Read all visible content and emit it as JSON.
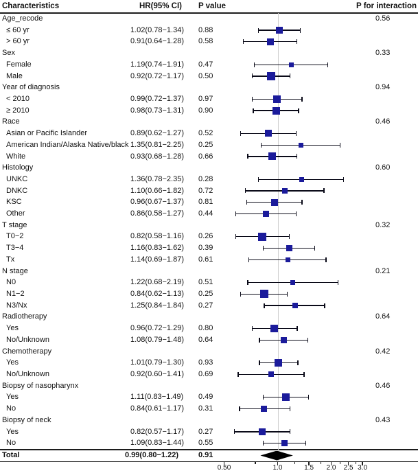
{
  "chart_data": {
    "type": "scatter",
    "subtype": "forest-plot",
    "headers": {
      "characteristics": "Characteristics",
      "hr": "HR(95% CI)",
      "pvalue": "P value",
      "pinteraction": "P for interaction"
    },
    "colors": {
      "marker": "#1b1b9b",
      "ci_line": "#0a0a18",
      "reference_line": "#cfcfcf",
      "diamond": "#000000",
      "rule": "#1c1c1c"
    },
    "axis": {
      "scale": "log10",
      "reference_value": 1.0,
      "major_ticks": [
        0.5,
        1.0,
        1.5,
        2.0,
        2.5,
        3.0
      ],
      "major_tick_labels": [
        "0.50",
        "1.0",
        "1.5",
        "2.0",
        "2.5",
        "3.0"
      ],
      "minor_ticks": [
        0.75,
        1.25,
        1.75,
        2.25,
        2.75
      ]
    },
    "rows": [
      {
        "type": "group",
        "label": "Age_recode",
        "p_interaction": "0.56"
      },
      {
        "type": "item",
        "label": "≤ 60 yr",
        "hr_ci": "1.02(0.78−1.34)",
        "hr": 1.02,
        "lo": 0.78,
        "hi": 1.34,
        "p": "0.88",
        "size": 10
      },
      {
        "type": "item",
        "label": "> 60 yr",
        "hr_ci": "0.91(0.64−1.28)",
        "hr": 0.91,
        "lo": 0.64,
        "hi": 1.28,
        "p": "0.58",
        "size": 10
      },
      {
        "type": "group",
        "label": "Sex",
        "p_interaction": "0.33"
      },
      {
        "type": "item",
        "label": "Female",
        "hr_ci": "1.19(0.74−1.91)",
        "hr": 1.19,
        "lo": 0.74,
        "hi": 1.91,
        "p": "0.47",
        "size": 7
      },
      {
        "type": "item",
        "label": "Male",
        "hr_ci": "0.92(0.72−1.17)",
        "hr": 0.92,
        "lo": 0.72,
        "hi": 1.17,
        "p": "0.50",
        "size": 12
      },
      {
        "type": "group",
        "label": "Year of diagnosis",
        "p_interaction": "0.94"
      },
      {
        "type": "item",
        "label": "< 2010",
        "hr_ci": "0.99(0.72−1.37)",
        "hr": 0.99,
        "lo": 0.72,
        "hi": 1.37,
        "p": "0.97",
        "size": 11
      },
      {
        "type": "item",
        "label": "≥ 2010",
        "hr_ci": "0.98(0.73−1.31)",
        "hr": 0.98,
        "lo": 0.73,
        "hi": 1.31,
        "p": "0.90",
        "size": 11
      },
      {
        "type": "group",
        "label": "Race",
        "p_interaction": "0.46"
      },
      {
        "type": "item",
        "label": "Asian or Pacific Islander",
        "hr_ci": "0.89(0.62−1.27)",
        "hr": 0.89,
        "lo": 0.62,
        "hi": 1.27,
        "p": "0.52",
        "size": 10
      },
      {
        "type": "item",
        "label": "American Indian/Alaska Native/black",
        "hr_ci": "1.35(0.81−2.25)",
        "hr": 1.35,
        "lo": 0.81,
        "hi": 2.25,
        "p": "0.25",
        "size": 7
      },
      {
        "type": "item",
        "label": "White",
        "hr_ci": "0.93(0.68−1.28)",
        "hr": 0.93,
        "lo": 0.68,
        "hi": 1.28,
        "p": "0.66",
        "size": 11
      },
      {
        "type": "group",
        "label": "Histology",
        "p_interaction": "0.60"
      },
      {
        "type": "item",
        "label": "UNKC",
        "hr_ci": "1.36(0.78−2.35)",
        "hr": 1.36,
        "lo": 0.78,
        "hi": 2.35,
        "p": "0.28",
        "size": 7
      },
      {
        "type": "item",
        "label": "DNKC",
        "hr_ci": "1.10(0.66−1.82)",
        "hr": 1.1,
        "lo": 0.66,
        "hi": 1.82,
        "p": "0.72",
        "size": 8
      },
      {
        "type": "item",
        "label": "KSC",
        "hr_ci": "0.96(0.67−1.37)",
        "hr": 0.96,
        "lo": 0.67,
        "hi": 1.37,
        "p": "0.81",
        "size": 10
      },
      {
        "type": "item",
        "label": "Other",
        "hr_ci": "0.86(0.58−1.27)",
        "hr": 0.86,
        "lo": 0.58,
        "hi": 1.27,
        "p": "0.44",
        "size": 9
      },
      {
        "type": "group",
        "label": "T stage",
        "p_interaction": "0.32"
      },
      {
        "type": "item",
        "label": "T0−2",
        "hr_ci": "0.82(0.58−1.16)",
        "hr": 0.82,
        "lo": 0.58,
        "hi": 1.16,
        "p": "0.26",
        "size": 12
      },
      {
        "type": "item",
        "label": "T3−4",
        "hr_ci": "1.16(0.83−1.62)",
        "hr": 1.16,
        "lo": 0.83,
        "hi": 1.62,
        "p": "0.39",
        "size": 9
      },
      {
        "type": "item",
        "label": "Tx",
        "hr_ci": "1.14(0.69−1.87)",
        "hr": 1.14,
        "lo": 0.69,
        "hi": 1.87,
        "p": "0.61",
        "size": 7
      },
      {
        "type": "group",
        "label": "N stage",
        "p_interaction": "0.21"
      },
      {
        "type": "item",
        "label": "N0",
        "hr_ci": "1.22(0.68−2.19)",
        "hr": 1.22,
        "lo": 0.68,
        "hi": 2.19,
        "p": "0.51",
        "size": 7
      },
      {
        "type": "item",
        "label": "N1−2",
        "hr_ci": "0.84(0.62−1.13)",
        "hr": 0.84,
        "lo": 0.62,
        "hi": 1.13,
        "p": "0.25",
        "size": 12
      },
      {
        "type": "item",
        "label": "N3/Nx",
        "hr_ci": "1.25(0.84−1.84)",
        "hr": 1.25,
        "lo": 0.84,
        "hi": 1.84,
        "p": "0.27",
        "size": 8
      },
      {
        "type": "group",
        "label": "Radiotherapy",
        "p_interaction": "0.64"
      },
      {
        "type": "item",
        "label": "Yes",
        "hr_ci": "0.96(0.72−1.29)",
        "hr": 0.96,
        "lo": 0.72,
        "hi": 1.29,
        "p": "0.80",
        "size": 11
      },
      {
        "type": "item",
        "label": "No/Unknown",
        "hr_ci": "1.08(0.79−1.48)",
        "hr": 1.08,
        "lo": 0.79,
        "hi": 1.48,
        "p": "0.64",
        "size": 9
      },
      {
        "type": "group",
        "label": "Chemotherapy",
        "p_interaction": "0.42"
      },
      {
        "type": "item",
        "label": "Yes",
        "hr_ci": "1.01(0.79−1.30)",
        "hr": 1.01,
        "lo": 0.79,
        "hi": 1.3,
        "p": "0.93",
        "size": 11
      },
      {
        "type": "item",
        "label": "No/Unknown",
        "hr_ci": "0.92(0.60−1.41)",
        "hr": 0.92,
        "lo": 0.6,
        "hi": 1.41,
        "p": "0.69",
        "size": 8
      },
      {
        "type": "group",
        "label": "Biopsy of nasopharynx",
        "p_interaction": "0.46"
      },
      {
        "type": "item",
        "label": "Yes",
        "hr_ci": "1.11(0.83−1.49)",
        "hr": 1.11,
        "lo": 0.83,
        "hi": 1.49,
        "p": "0.49",
        "size": 11
      },
      {
        "type": "item",
        "label": "No",
        "hr_ci": "0.84(0.61−1.17)",
        "hr": 0.84,
        "lo": 0.61,
        "hi": 1.17,
        "p": "0.31",
        "size": 9
      },
      {
        "type": "group",
        "label": "Biopsy of neck",
        "p_interaction": "0.43"
      },
      {
        "type": "item",
        "label": "Yes",
        "hr_ci": "0.82(0.57−1.17)",
        "hr": 0.82,
        "lo": 0.57,
        "hi": 1.17,
        "p": "0.27",
        "size": 10
      },
      {
        "type": "item",
        "label": "No",
        "hr_ci": "1.09(0.83−1.44)",
        "hr": 1.09,
        "lo": 0.83,
        "hi": 1.44,
        "p": "0.55",
        "size": 9
      }
    ],
    "total": {
      "label": "Total",
      "hr_ci": "0.99(0.80−1.22)",
      "hr": 0.99,
      "lo": 0.8,
      "hi": 1.22,
      "p": "0.91"
    }
  }
}
